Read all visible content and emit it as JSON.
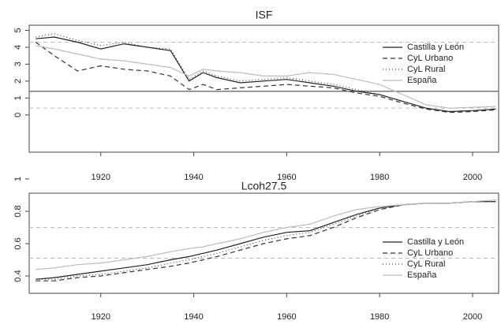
{
  "chart_data": [
    {
      "type": "line",
      "title": "ISF",
      "x": [
        1906,
        1910,
        1915,
        1920,
        1925,
        1930,
        1935,
        1939,
        1942,
        1945,
        1950,
        1955,
        1960,
        1965,
        1970,
        1975,
        1980,
        1985,
        1990,
        1995,
        2000,
        2005
      ],
      "series": [
        {
          "name": "Castilla y León",
          "color": "#222222",
          "dash": "none",
          "values": [
            4.5,
            4.6,
            4.3,
            3.9,
            4.2,
            4.0,
            3.8,
            2.0,
            2.5,
            2.2,
            1.9,
            2.0,
            2.1,
            1.9,
            1.7,
            1.4,
            1.2,
            0.8,
            0.4,
            0.2,
            0.25,
            0.35
          ]
        },
        {
          "name": "CyL Urbano",
          "color": "#333333",
          "dash": "6,4",
          "values": [
            4.3,
            3.5,
            2.6,
            2.9,
            2.7,
            2.6,
            2.3,
            1.5,
            1.8,
            1.5,
            1.6,
            1.7,
            1.8,
            1.7,
            1.6,
            1.3,
            1.1,
            0.7,
            0.35,
            0.15,
            0.2,
            0.3
          ]
        },
        {
          "name": "CyL Rural",
          "color": "#444444",
          "dash": "1,3",
          "values": [
            4.6,
            4.8,
            4.4,
            4.1,
            4.3,
            4.0,
            3.9,
            2.1,
            2.6,
            2.3,
            2.0,
            2.1,
            2.2,
            2.0,
            1.8,
            1.5,
            1.2,
            0.8,
            0.4,
            0.2,
            0.25,
            0.35
          ]
        },
        {
          "name": "España",
          "color": "#bbbbbb",
          "dash": "none",
          "values": [
            4.1,
            3.9,
            3.6,
            3.3,
            3.2,
            3.0,
            2.8,
            2.3,
            2.7,
            2.6,
            2.5,
            2.3,
            2.3,
            2.5,
            2.4,
            2.1,
            1.8,
            1.2,
            0.6,
            0.4,
            0.45,
            0.5
          ]
        }
      ],
      "reference_lines": [
        4.3,
        1.4,
        0.4
      ],
      "xlim": [
        1904.6,
        2005.6
      ],
      "xticks": [
        1920,
        1940,
        1960,
        1980,
        2000
      ],
      "ylim": [
        -2.2,
        5.3
      ],
      "yticks": [
        0,
        1,
        2,
        3,
        4,
        5
      ]
    },
    {
      "type": "line",
      "title": "Lcoh27.5",
      "x": [
        1906,
        1910,
        1915,
        1920,
        1925,
        1930,
        1935,
        1939,
        1942,
        1945,
        1950,
        1955,
        1960,
        1965,
        1970,
        1975,
        1980,
        1985,
        1990,
        1995,
        2000,
        2005
      ],
      "series": [
        {
          "name": "Castilla y León",
          "color": "#222222",
          "dash": "none",
          "values": [
            0.38,
            0.39,
            0.41,
            0.43,
            0.45,
            0.47,
            0.5,
            0.52,
            0.54,
            0.56,
            0.6,
            0.64,
            0.67,
            0.68,
            0.73,
            0.78,
            0.82,
            0.84,
            0.85,
            0.85,
            0.86,
            0.86
          ]
        },
        {
          "name": "CyL Urbano",
          "color": "#333333",
          "dash": "6,4",
          "values": [
            0.37,
            0.37,
            0.39,
            0.4,
            0.42,
            0.44,
            0.46,
            0.48,
            0.5,
            0.52,
            0.56,
            0.6,
            0.63,
            0.65,
            0.7,
            0.76,
            0.81,
            0.84,
            0.85,
            0.85,
            0.86,
            0.86
          ]
        },
        {
          "name": "CyL Rural",
          "color": "#444444",
          "dash": "1,3",
          "values": [
            0.38,
            0.38,
            0.4,
            0.41,
            0.43,
            0.45,
            0.48,
            0.5,
            0.52,
            0.54,
            0.58,
            0.62,
            0.65,
            0.67,
            0.72,
            0.77,
            0.82,
            0.84,
            0.85,
            0.85,
            0.86,
            0.86
          ]
        },
        {
          "name": "España",
          "color": "#bbbbbb",
          "dash": "none",
          "values": [
            0.44,
            0.45,
            0.47,
            0.48,
            0.5,
            0.52,
            0.55,
            0.57,
            0.58,
            0.6,
            0.63,
            0.67,
            0.7,
            0.72,
            0.77,
            0.81,
            0.83,
            0.84,
            0.85,
            0.85,
            0.86,
            0.87
          ]
        }
      ],
      "reference_lines": [
        0.7,
        0.51
      ],
      "xlim": [
        1904.6,
        2005.6
      ],
      "xticks": [
        1920,
        1940,
        1960,
        1980,
        2000
      ],
      "ylim": [
        0.293,
        0.912
      ],
      "yticks": [
        0.4,
        0.6,
        0.8,
        1.0
      ]
    }
  ]
}
